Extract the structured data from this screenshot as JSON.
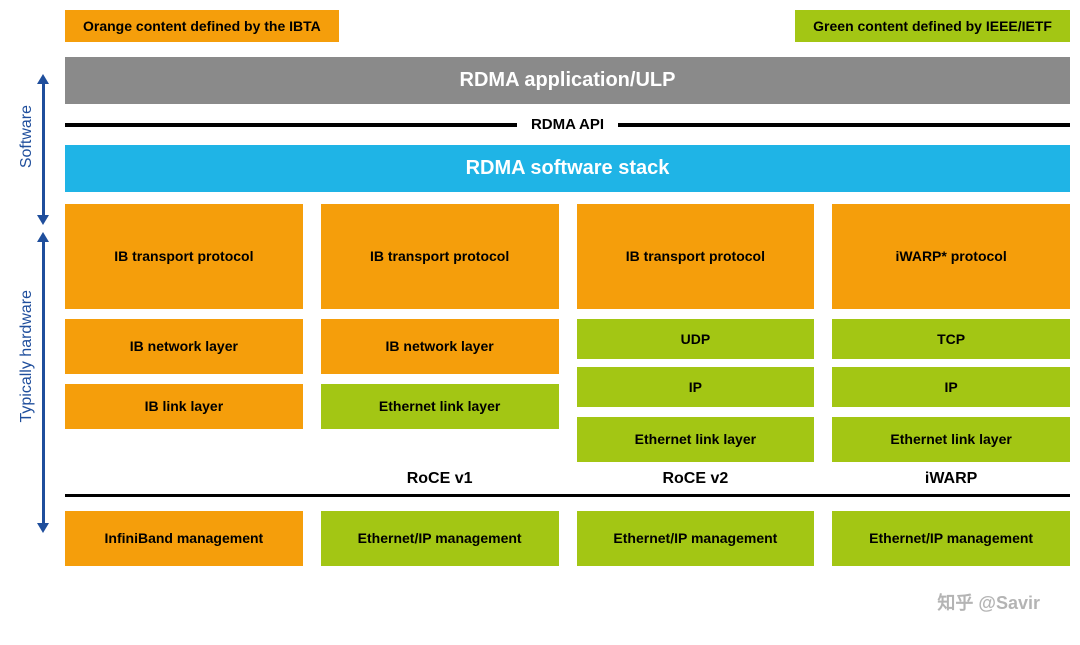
{
  "colors": {
    "orange": "#f59e0b",
    "green": "#a3c614",
    "gray": "#8a8a8a",
    "cyan": "#1fb4e6",
    "arrow": "#1f4e9c"
  },
  "legend": {
    "orange": "Orange content defined by the IBTA",
    "green": "Green content defined by IEEE/IETF"
  },
  "side_labels": {
    "software": "Software",
    "hardware": "Typically hardware"
  },
  "app_bar": "RDMA application/ULP",
  "api_label": "RDMA API",
  "sw_stack": "RDMA software stack",
  "columns": [
    {
      "name": "",
      "transport": {
        "text": "IB transport protocol",
        "color": "orange"
      },
      "network": {
        "type": "single",
        "text": "IB network layer",
        "color": "orange"
      },
      "link": {
        "text": "IB link layer",
        "color": "orange"
      },
      "mgmt": {
        "text": "InfiniBand management",
        "color": "orange"
      }
    },
    {
      "name": "RoCE v1",
      "transport": {
        "text": "IB transport protocol",
        "color": "orange"
      },
      "network": {
        "type": "single",
        "text": "IB network layer",
        "color": "orange"
      },
      "link": {
        "text": "Ethernet link layer",
        "color": "green"
      },
      "mgmt": {
        "text": "Ethernet/IP management",
        "color": "green"
      }
    },
    {
      "name": "RoCE v2",
      "transport": {
        "text": "IB transport protocol",
        "color": "orange"
      },
      "network": {
        "type": "split",
        "top": "UDP",
        "bottom": "IP",
        "color": "green"
      },
      "link": {
        "text": "Ethernet link layer",
        "color": "green"
      },
      "mgmt": {
        "text": "Ethernet/IP management",
        "color": "green"
      }
    },
    {
      "name": "iWARP",
      "transport": {
        "text": "iWARP* protocol",
        "color": "orange"
      },
      "network": {
        "type": "split",
        "top": "TCP",
        "bottom": "IP",
        "color": "green"
      },
      "link": {
        "text": "Ethernet link layer",
        "color": "green"
      },
      "mgmt": {
        "text": "Ethernet/IP management",
        "color": "green"
      }
    }
  ],
  "watermark": "知乎 @Savir"
}
